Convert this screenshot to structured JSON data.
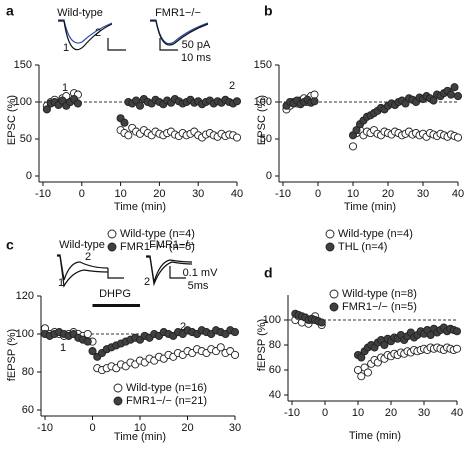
{
  "chart_data": [
    {
      "type": "scatter",
      "panel": "a",
      "y_label": "EPSC (%)",
      "x_label": "Time (min)",
      "xlim": [
        -10,
        40
      ],
      "xticks": [
        -10,
        0,
        10,
        20,
        30,
        40
      ],
      "ylim": [
        0,
        150
      ],
      "yticks": [
        0,
        50,
        100,
        150
      ],
      "hline": 100,
      "x": [
        -9,
        -8,
        -7,
        -6,
        -5,
        -4,
        -3,
        -2,
        -1,
        10,
        11,
        12,
        13,
        14,
        15,
        16,
        17,
        18,
        19,
        20,
        21,
        22,
        23,
        24,
        25,
        26,
        27,
        28,
        29,
        30,
        31,
        32,
        33,
        34,
        35,
        36,
        37,
        38,
        39,
        40
      ],
      "series": [
        {
          "name": "Wild-type (n=4)",
          "color": "#ffffff",
          "values": [
            95,
            100,
            103,
            98,
            105,
            108,
            100,
            112,
            110,
            62,
            58,
            55,
            65,
            60,
            57,
            62,
            58,
            55,
            60,
            57,
            55,
            58,
            60,
            56,
            54,
            58,
            55,
            57,
            60,
            55,
            52,
            56,
            58,
            55,
            53,
            57,
            54,
            56,
            55,
            52
          ]
        },
        {
          "name": "FMR1−/− (n=5)",
          "color": "#404040",
          "values": [
            90,
            98,
            100,
            96,
            102,
            95,
            100,
            104,
            98,
            78,
            72,
            100,
            98,
            102,
            95,
            104,
            100,
            98,
            103,
            100,
            97,
            102,
            99,
            104,
            101,
            98,
            100,
            103,
            99,
            101,
            97,
            100,
            102,
            98,
            101,
            99,
            103,
            100,
            98,
            101
          ]
        }
      ],
      "annotations": [
        "1",
        "2",
        "Wild-type",
        "FMR1−/−",
        "50 pA",
        "10 ms",
        "1",
        "2"
      ]
    },
    {
      "type": "scatter",
      "panel": "b",
      "y_label": "EPSC (%)",
      "x_label": "Time (min)",
      "xlim": [
        -10,
        40
      ],
      "xticks": [
        -10,
        0,
        10,
        20,
        30,
        40
      ],
      "ylim": [
        0,
        150
      ],
      "yticks": [
        0,
        50,
        100,
        150
      ],
      "hline": 100,
      "x": [
        -9,
        -8,
        -7,
        -6,
        -5,
        -4,
        -3,
        -2,
        -1,
        10,
        11,
        12,
        13,
        14,
        15,
        16,
        17,
        18,
        19,
        20,
        21,
        22,
        23,
        24,
        25,
        26,
        27,
        28,
        29,
        30,
        31,
        32,
        33,
        34,
        35,
        36,
        37,
        38,
        39,
        40
      ],
      "series": [
        {
          "name": "Wild-type (n=4)",
          "color": "#ffffff",
          "values": [
            90,
            95,
            100,
            98,
            102,
            105,
            100,
            108,
            110,
            40,
            58,
            62,
            55,
            60,
            58,
            62,
            57,
            55,
            60,
            58,
            56,
            60,
            58,
            55,
            57,
            60,
            56,
            58,
            55,
            57,
            53,
            58,
            56,
            54,
            57,
            55,
            53,
            56,
            54,
            52
          ]
        },
        {
          "name": "THL (n=4)",
          "color": "#404040",
          "values": [
            95,
            100,
            98,
            102,
            97,
            100,
            103,
            99,
            101,
            55,
            62,
            70,
            75,
            80,
            82,
            85,
            88,
            92,
            90,
            95,
            98,
            96,
            100,
            102,
            98,
            105,
            103,
            100,
            106,
            104,
            108,
            105,
            102,
            110,
            108,
            112,
            115,
            110,
            120,
            108
          ]
        }
      ],
      "annotations": []
    },
    {
      "type": "scatter",
      "panel": "c",
      "y_label": "fEPSP (%)",
      "x_label": "Time (min)",
      "xlim": [
        -10,
        30
      ],
      "xticks": [
        -10,
        0,
        10,
        20,
        30
      ],
      "ylim": [
        60,
        120
      ],
      "yticks": [
        60,
        80,
        100,
        120
      ],
      "hline": 100,
      "bar_range": [
        0,
        10
      ],
      "x": [
        -10,
        -9,
        -8,
        -7,
        -6,
        -5,
        -4,
        -3,
        -2,
        -1,
        0,
        1,
        2,
        3,
        4,
        5,
        6,
        7,
        8,
        9,
        10,
        11,
        12,
        13,
        14,
        15,
        16,
        17,
        18,
        19,
        20,
        21,
        22,
        23,
        24,
        25,
        26,
        27,
        28,
        29,
        30
      ],
      "series": [
        {
          "name": "Wild-type (n=16)",
          "color": "#ffffff",
          "values": [
            103,
            100,
            101,
            100,
            99,
            100,
            101,
            100,
            99,
            100,
            96,
            82,
            81,
            82,
            83,
            82,
            84,
            83,
            85,
            84,
            86,
            85,
            87,
            86,
            88,
            87,
            89,
            88,
            90,
            89,
            91,
            90,
            92,
            91,
            90,
            92,
            91,
            93,
            90,
            91,
            89
          ]
        },
        {
          "name": "FMR1−/− (n=21)",
          "color": "#404040",
          "values": [
            100,
            99,
            100,
            101,
            100,
            99,
            100,
            98,
            97,
            96,
            91,
            88,
            90,
            92,
            93,
            94,
            95,
            96,
            97,
            98,
            97,
            99,
            98,
            100,
            99,
            101,
            100,
            99,
            101,
            100,
            102,
            101,
            100,
            102,
            101,
            100,
            102,
            101,
            100,
            102,
            101
          ]
        }
      ],
      "annotations": [
        "DHPG",
        "Wild-type",
        "FMR1−/−",
        "0.1 mV",
        "5ms",
        "1",
        "2",
        "2",
        "1",
        "2"
      ]
    },
    {
      "type": "scatter",
      "panel": "d",
      "y_label": "fEPSP (%)",
      "x_label": "Time (min)",
      "xlim": [
        -10,
        40
      ],
      "xticks": [
        -10,
        0,
        10,
        20,
        30,
        40
      ],
      "ylim": [
        40,
        120
      ],
      "yticks": [
        40,
        60,
        80,
        100
      ],
      "hline": 100,
      "x": [
        -9,
        -8,
        -7,
        -6,
        -5,
        -4,
        -3,
        -2,
        -1,
        10,
        11,
        12,
        13,
        14,
        15,
        16,
        17,
        18,
        19,
        20,
        21,
        22,
        23,
        24,
        25,
        26,
        27,
        28,
        29,
        30,
        31,
        32,
        33,
        34,
        35,
        36,
        37,
        38,
        39,
        40
      ],
      "series": [
        {
          "name": "Wild-type (n=8)",
          "color": "#ffffff",
          "values": [
            100,
            103,
            98,
            102,
            97,
            100,
            103,
            99,
            96,
            60,
            55,
            62,
            58,
            65,
            68,
            66,
            70,
            69,
            72,
            71,
            73,
            72,
            74,
            73,
            75,
            74,
            76,
            75,
            76,
            77,
            76,
            78,
            77,
            78,
            77,
            76,
            78,
            77,
            76,
            77
          ]
        },
        {
          "name": "FMR1−/− (n=5)",
          "color": "#404040",
          "values": [
            105,
            104,
            103,
            102,
            100,
            101,
            100,
            99,
            98,
            72,
            70,
            75,
            78,
            80,
            78,
            82,
            84,
            80,
            85,
            83,
            86,
            85,
            88,
            84,
            87,
            90,
            86,
            88,
            91,
            89,
            92,
            88,
            93,
            90,
            92,
            94,
            91,
            93,
            92,
            91
          ]
        }
      ],
      "annotations": []
    }
  ]
}
